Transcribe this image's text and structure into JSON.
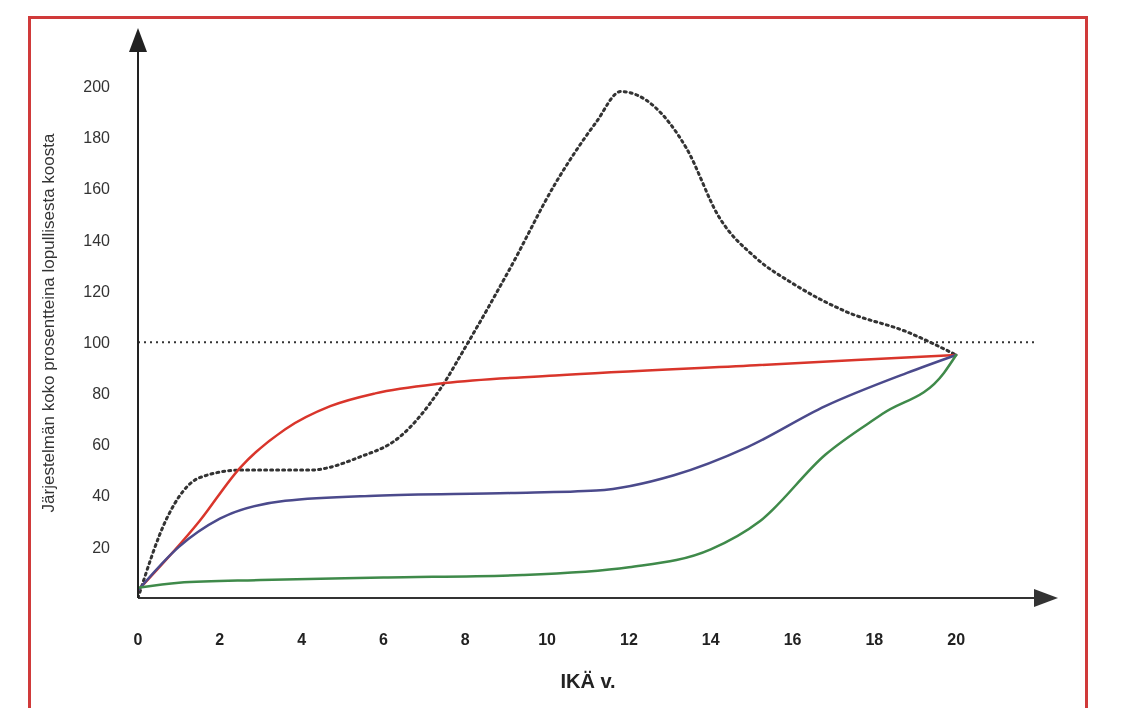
{
  "chart_data": {
    "type": "line",
    "xlabel": "IKÄ v.",
    "ylabel": "Järjestelmän koko prosentteina lopullisesta koosta",
    "xlim": [
      0,
      22
    ],
    "xticks": [
      0,
      2,
      4,
      6,
      8,
      10,
      12,
      14,
      16,
      18,
      20
    ],
    "ylim": [
      0,
      215
    ],
    "yticks": [
      20,
      40,
      60,
      80,
      100,
      120,
      140,
      160,
      180,
      200
    ],
    "marker": "none",
    "ref_lines": [
      {
        "axis": "y",
        "value": 100,
        "line_style": "dotted",
        "color": "#333333"
      }
    ],
    "series": [
      {
        "color": "#333333",
        "line_style": "dotted",
        "x": [
          0,
          0.7,
          1.5,
          2.5,
          4.2,
          5.4,
          6.4,
          7.4,
          8.0,
          9.1,
          10.2,
          11.2,
          11.8,
          13.4,
          14.2,
          15.1,
          16.0,
          17.3,
          18.8,
          20
        ],
        "values": [
          0,
          31,
          47,
          50,
          50,
          55,
          63,
          82,
          98,
          129,
          162,
          186,
          198,
          176,
          149,
          133,
          123,
          112,
          104,
          95
        ]
      },
      {
        "color": "#d9352b",
        "line_style": "solid",
        "x": [
          0,
          1.5,
          2.5,
          3.6,
          4.7,
          5.8,
          7.5,
          10.2,
          15.1,
          20
        ],
        "values": [
          3,
          30,
          51,
          66,
          75,
          80,
          84,
          87,
          91,
          95
        ]
      },
      {
        "color": "#4b4a8c",
        "line_style": "solid",
        "x": [
          0,
          1,
          2,
          3.6,
          5.8,
          9.1,
          11.2,
          13.1,
          14.9,
          16.8,
          18.8,
          20
        ],
        "values": [
          3,
          20,
          31,
          38,
          40,
          41,
          42,
          48,
          59,
          75,
          88,
          95
        ]
      },
      {
        "color": "#3f8a4a",
        "line_style": "solid",
        "x": [
          0,
          1,
          3,
          6,
          9.4,
          12,
          14,
          15.2,
          16.8,
          18.2,
          19.7,
          20
        ],
        "values": [
          4,
          6,
          7,
          8,
          9,
          12,
          19,
          30,
          56,
          72,
          88,
          95
        ]
      }
    ]
  }
}
